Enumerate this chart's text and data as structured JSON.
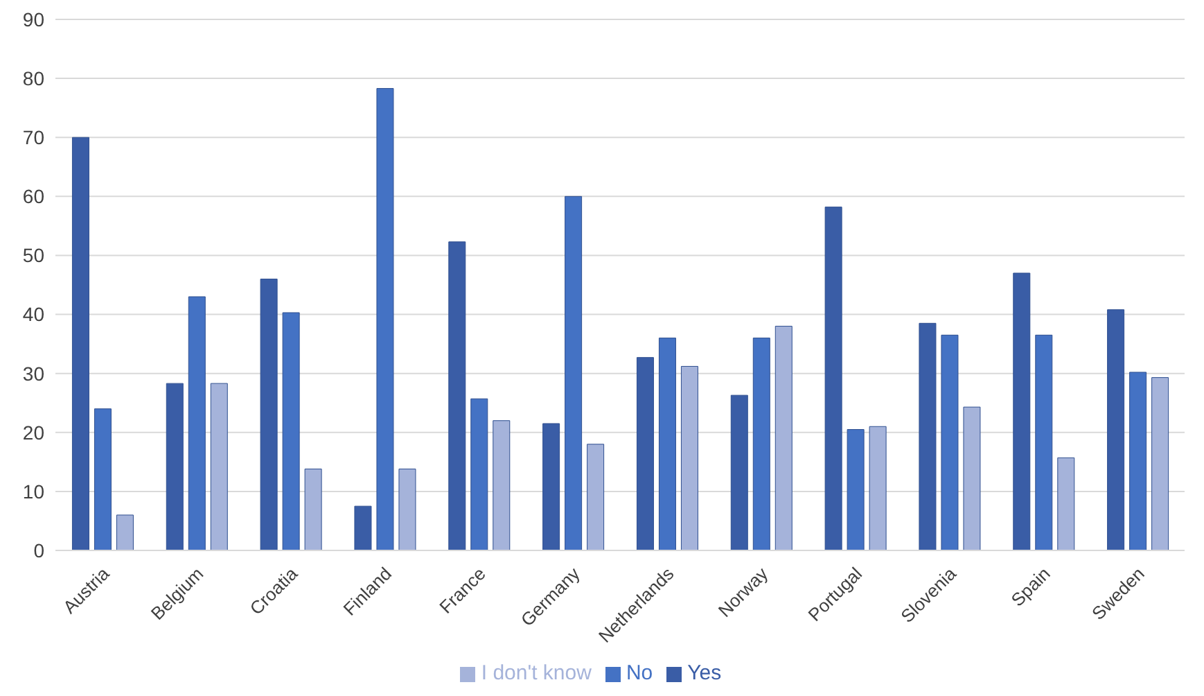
{
  "chart_data": {
    "type": "bar",
    "categories": [
      "Austria",
      "Belgium",
      "Croatia",
      "Finland",
      "France",
      "Germany",
      "Netherlands",
      "Norway",
      "Portugal",
      "Slovenia",
      "Spain",
      "Sweden"
    ],
    "series": [
      {
        "name": "Yes",
        "color": "#3a5da6",
        "values": [
          70,
          28.3,
          46,
          7.5,
          52.3,
          21.5,
          32.7,
          26.3,
          58.2,
          38.5,
          47,
          40.8
        ]
      },
      {
        "name": "No",
        "color": "#4472c4",
        "values": [
          24,
          43,
          40.3,
          78.3,
          25.7,
          60,
          36,
          36,
          20.5,
          36.5,
          36.5,
          30.2
        ]
      },
      {
        "name": "I don't know",
        "color": "#a5b3da",
        "values": [
          6,
          28.3,
          13.8,
          13.8,
          22,
          18,
          31.2,
          38,
          21,
          24.3,
          15.7,
          29.3
        ]
      }
    ],
    "ylim": [
      0,
      90
    ],
    "yticks": [
      0,
      10,
      20,
      30,
      40,
      50,
      60,
      70,
      80,
      90
    ],
    "grid": "y",
    "legend": "bottom"
  }
}
